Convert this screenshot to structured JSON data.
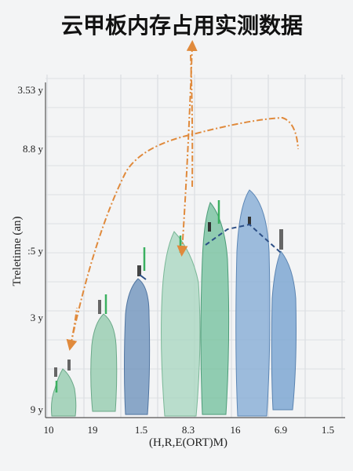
{
  "chart_data": {
    "type": "violin",
    "title": "云甲板内存占用实测数据",
    "x_label": "(H,R,E(ORT)M)",
    "y_label": "Treletinne (an)",
    "categories": [
      "10",
      "19",
      "1.5",
      "8.3",
      "16",
      "6.9",
      "1.5"
    ],
    "y_labels": [
      "3.53 y",
      "8.8 y",
      ":5 y",
      "3 y",
      "9 y"
    ]
  }
}
